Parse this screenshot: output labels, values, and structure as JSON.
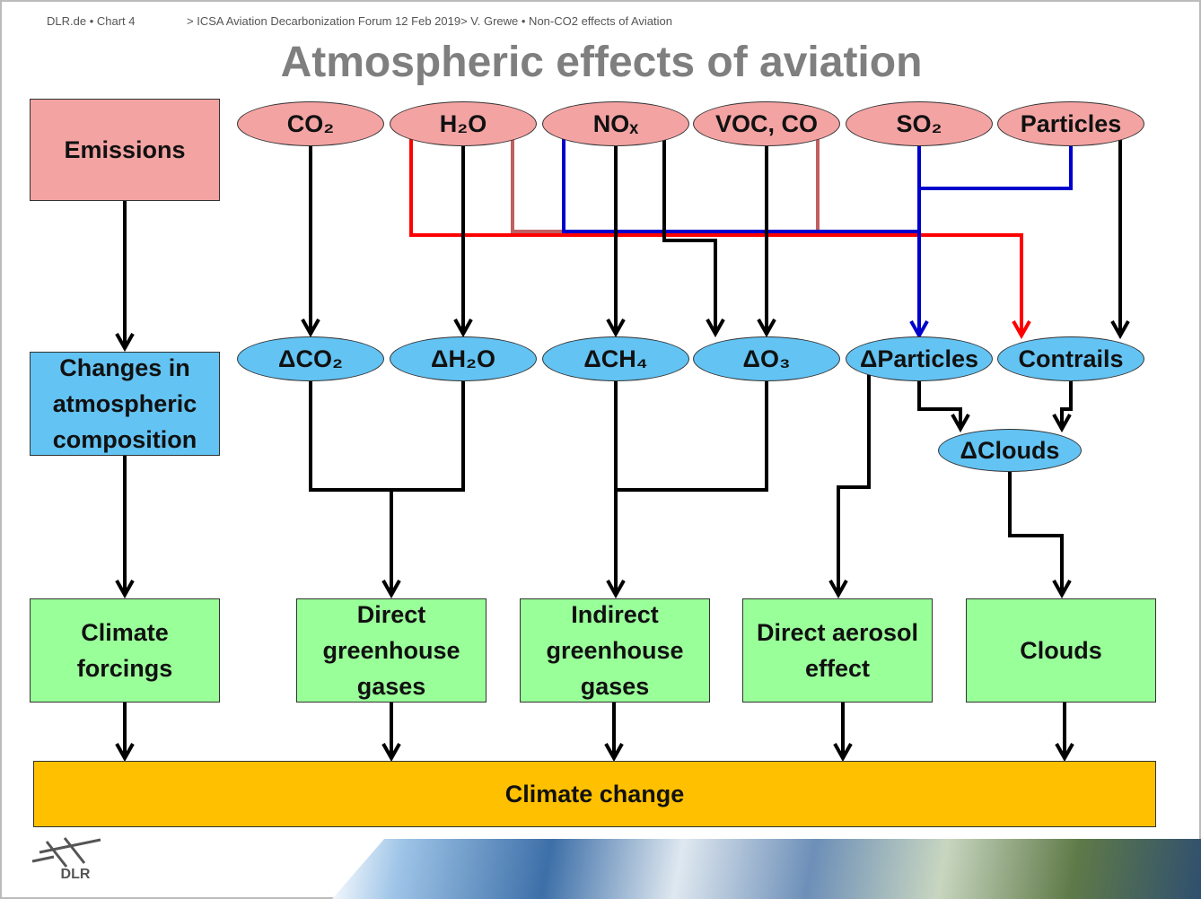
{
  "header": {
    "left": "DLR.de • Chart 4",
    "right": "> ICSA Aviation Decarbonization Forum 12 Feb 2019> V. Grewe • Non-CO2 effects of Aviation"
  },
  "title": "Atmospheric effects of aviation",
  "rows": [
    "Emissions",
    "Changes in atmospheric composition",
    "Climate forcings"
  ],
  "emissions": [
    "CO₂",
    "H₂O",
    "NOₓ",
    "VOC, CO",
    "SO₂",
    "Particles"
  ],
  "changes": [
    "ΔCO₂",
    "ΔH₂O",
    "ΔCH₄",
    "ΔO₃",
    "ΔParticles",
    "Contrails",
    "ΔClouds"
  ],
  "effects": [
    "Direct greenhouse gases",
    "Indirect greenhouse gases",
    "Direct aerosol effect",
    "Clouds"
  ],
  "result": "Climate change",
  "logo": "DLR"
}
